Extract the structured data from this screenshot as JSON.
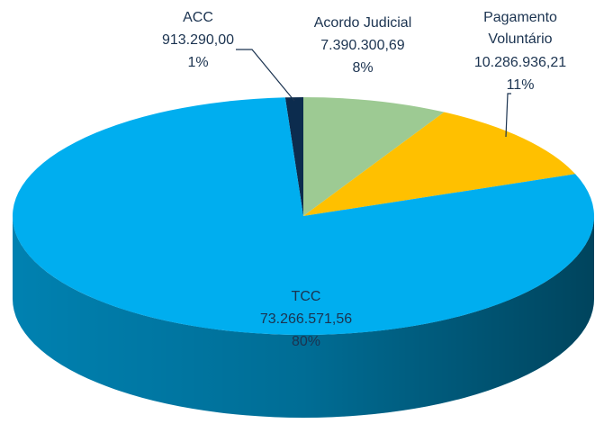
{
  "chart_data": {
    "type": "pie",
    "categories": [
      "ACC",
      "Acordo Judicial",
      "Pagamento Voluntário",
      "TCC"
    ],
    "values": [
      913290.0,
      7390300.69,
      10286936.21,
      73266571.56
    ],
    "value_labels": [
      "913.290,00",
      "7.390.300,69",
      "10.286.936,21",
      "73.266.571,56"
    ],
    "percent_labels": [
      "1%",
      "8%",
      "11%",
      "80%"
    ],
    "colors": [
      "#0c2c4e",
      "#9dca93",
      "#ffc000",
      "#00aeef"
    ]
  }
}
